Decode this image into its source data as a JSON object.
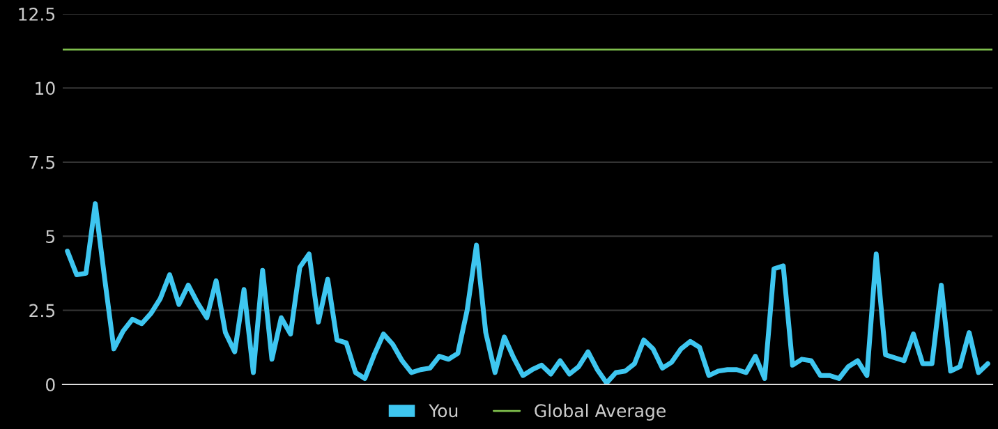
{
  "chart_data": {
    "type": "line",
    "categories": [
      null,
      null,
      null,
      null,
      null,
      null,
      null,
      null,
      null,
      null,
      null,
      null,
      null,
      null,
      null,
      null,
      null,
      null,
      null,
      null,
      null,
      null,
      null,
      null,
      null,
      null,
      null,
      null,
      null,
      null,
      null,
      null,
      null,
      null,
      null,
      null,
      null,
      null,
      null,
      null,
      null,
      null,
      null,
      null,
      null,
      null,
      null,
      null,
      null,
      null,
      null,
      null,
      null,
      null,
      null,
      null,
      null,
      null,
      null,
      null,
      null,
      null,
      null,
      null,
      null,
      null,
      null,
      null,
      null,
      null,
      null,
      null,
      null,
      null,
      null,
      null,
      null,
      null,
      null,
      null,
      null,
      null,
      null,
      null,
      null,
      null,
      null,
      null,
      null,
      null,
      null,
      null,
      null,
      null,
      null,
      null,
      null,
      null,
      null,
      null
    ],
    "series": [
      {
        "name": "You",
        "color": "#3ec6f0",
        "values": [
          4.5,
          3.7,
          3.75,
          6.1,
          3.6,
          1.2,
          1.8,
          2.2,
          2.05,
          2.4,
          2.9,
          3.7,
          2.7,
          3.35,
          2.75,
          2.25,
          3.5,
          1.75,
          1.1,
          3.2,
          0.4,
          3.85,
          0.85,
          2.25,
          1.7,
          3.95,
          4.4,
          2.1,
          3.55,
          1.5,
          1.4,
          0.4,
          0.2,
          1.0,
          1.7,
          1.35,
          0.8,
          0.4,
          0.5,
          0.55,
          0.95,
          0.85,
          1.05,
          2.5,
          4.7,
          1.75,
          0.4,
          1.6,
          0.9,
          0.3,
          0.5,
          0.65,
          0.35,
          0.8,
          0.35,
          0.6,
          1.1,
          0.5,
          0.05,
          0.4,
          0.45,
          0.7,
          1.5,
          1.2,
          0.55,
          0.75,
          1.2,
          1.45,
          1.25,
          0.3,
          0.45,
          0.5,
          0.5,
          0.4,
          0.95,
          0.2,
          3.9,
          4.0,
          0.65,
          0.85,
          0.8,
          0.3,
          0.3,
          0.2,
          0.6,
          0.8,
          0.3,
          4.4,
          1.0,
          0.9,
          0.8,
          1.7,
          0.7,
          0.7,
          3.35,
          0.45,
          0.6,
          1.75,
          0.4,
          0.7
        ]
      }
    ],
    "ref_lines": [
      {
        "axis": "y",
        "value": 11.3,
        "label": "Global Average",
        "color": "#7fbf4d"
      }
    ],
    "ylim": [
      0,
      12.5
    ],
    "yticks": [
      0,
      2.5,
      5,
      7.5,
      10,
      12.5
    ],
    "grid": "y",
    "legend": "bottom",
    "marker": "none",
    "line_style": "solid"
  }
}
